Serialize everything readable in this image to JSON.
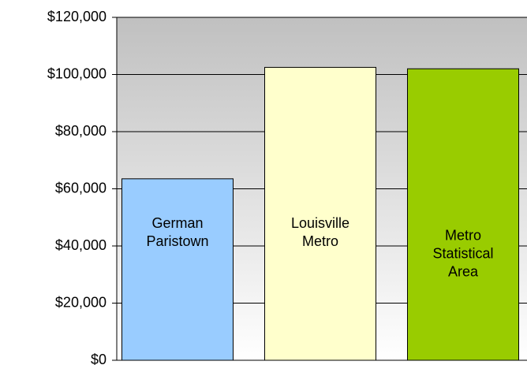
{
  "chart_data": {
    "type": "bar",
    "categories": [
      "German Paristown",
      "Louisville Metro",
      "Metro Statistical Area"
    ],
    "values": [
      63500,
      102500,
      102000
    ],
    "colors": [
      "#99ccff",
      "#ffffcc",
      "#99cc00"
    ],
    "ylim": [
      0,
      120000
    ],
    "yticks": [
      {
        "value": 0,
        "label": "$0"
      },
      {
        "value": 20000,
        "label": "$20,000"
      },
      {
        "value": 40000,
        "label": "$40,000"
      },
      {
        "value": 60000,
        "label": "$60,000"
      },
      {
        "value": 80000,
        "label": "$80,000"
      },
      {
        "value": 100000,
        "label": "$100,000"
      },
      {
        "value": 120000,
        "label": "$120,000"
      }
    ],
    "grid": true
  }
}
